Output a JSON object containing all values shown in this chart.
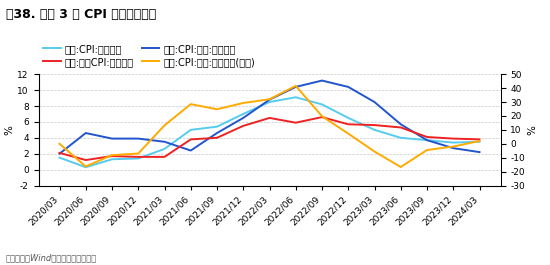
{
  "title": "图38. 美国 3 月 CPI 仍超预期升温",
  "footnote": "资料来源：Wind，国投证券研究中心",
  "legend": [
    {
      "label": "美国:CPI:当月同比",
      "color": "#55CCEE",
      "axis": "left"
    },
    {
      "label": "美国:CPI:食品:当月同比",
      "color": "#2255CC",
      "axis": "left"
    },
    {
      "label": "美国:核心CPI:当月同比",
      "color": "#EE2222",
      "axis": "left"
    },
    {
      "label": "美国:CPI:能源:当月同比(右轴)",
      "color": "#FFAA00",
      "axis": "right"
    }
  ],
  "xlabels": [
    "2020/03",
    "2020/06",
    "2020/09",
    "2020/12",
    "2021/03",
    "2021/06",
    "2021/09",
    "2021/12",
    "2022/03",
    "2022/06",
    "2022/09",
    "2022/12",
    "2023/03",
    "2023/06",
    "2023/09",
    "2023/12",
    "2024/03"
  ],
  "ylim_left": [
    -2,
    12
  ],
  "ylim_right": [
    -30,
    50
  ],
  "yticks_left": [
    -2,
    0,
    2,
    4,
    6,
    8,
    10,
    12
  ],
  "yticks_right": [
    -30,
    -20,
    -10,
    0,
    10,
    20,
    30,
    40,
    50
  ],
  "ylabel_left": "%",
  "ylabel_right": "%",
  "cpi": [
    1.5,
    0.3,
    1.3,
    1.4,
    2.6,
    5.0,
    5.4,
    7.0,
    8.5,
    9.1,
    8.2,
    6.5,
    5.0,
    4.0,
    3.7,
    3.4,
    3.5
  ],
  "cpi_food": [
    2.0,
    4.6,
    3.9,
    3.9,
    3.5,
    2.4,
    4.6,
    6.5,
    8.8,
    10.4,
    11.2,
    10.4,
    8.5,
    5.7,
    3.7,
    2.7,
    2.2
  ],
  "core_cpi": [
    2.1,
    1.2,
    1.7,
    1.6,
    1.6,
    3.8,
    4.0,
    5.5,
    6.5,
    5.9,
    6.6,
    5.7,
    5.6,
    5.3,
    4.1,
    3.9,
    3.8
  ],
  "energy_cpi": [
    0.0,
    -16.3,
    -8.2,
    -7.0,
    13.2,
    28.5,
    24.8,
    29.3,
    32.0,
    41.6,
    19.8,
    7.3,
    -5.6,
    -16.7,
    -4.5,
    -2.0,
    2.0
  ],
  "bg_color": "#FFFFFF",
  "grid_color": "#BBBBBB",
  "tick_fontsize": 6.5,
  "axis_label_fontsize": 7.5,
  "title_fontsize": 9,
  "legend_fontsize": 7,
  "footnote_fontsize": 6
}
